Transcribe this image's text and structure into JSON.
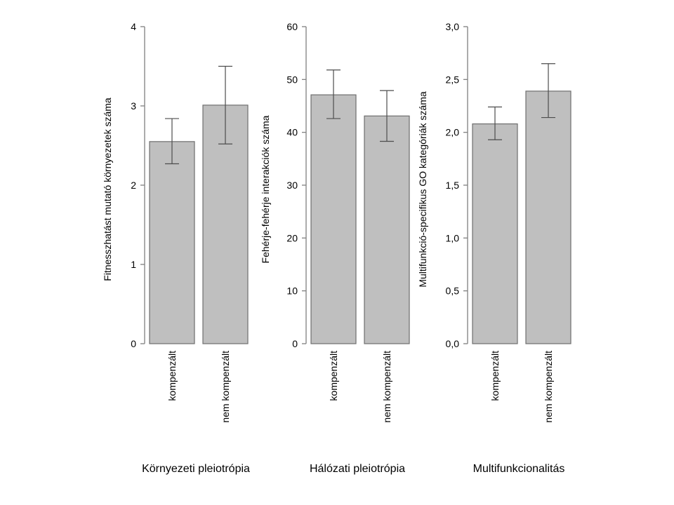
{
  "chart_data": [
    {
      "type": "bar",
      "title": "Környezeti  pleiotrópia",
      "ylabel": "Fitnesszhatást mutató környezetek száma",
      "ylim": [
        0,
        4
      ],
      "yticks": [
        "0",
        "1",
        "2",
        "3",
        "4"
      ],
      "categories": [
        "kompenzált",
        "nem kompenzált"
      ],
      "values": [
        2.55,
        3.01
      ],
      "error_low": [
        2.27,
        2.52
      ],
      "error_high": [
        2.84,
        3.5
      ],
      "bar_color": "#bfbfbf"
    },
    {
      "type": "bar",
      "title": "Hálózati  pleiotrópia",
      "ylabel": "Fehérje-fehérje interakciók száma",
      "ylim": [
        0,
        60
      ],
      "yticks": [
        "0",
        "10",
        "20",
        "30",
        "40",
        "50",
        "60"
      ],
      "categories": [
        "kompenzált",
        "nem kompenzált"
      ],
      "values": [
        47.1,
        43.1
      ],
      "error_low": [
        42.6,
        38.3
      ],
      "error_high": [
        51.8,
        47.9
      ],
      "bar_color": "#bfbfbf"
    },
    {
      "type": "bar",
      "title": "Multifunkcionalitás",
      "ylabel": "Multifunkció-specifikus GO kategóriák száma",
      "ylim": [
        0,
        3
      ],
      "yticks": [
        "0,0",
        "0,5",
        "1,0",
        "1,5",
        "2,0",
        "2,5",
        "3,0"
      ],
      "categories": [
        "kompenzált",
        "nem kompenzált"
      ],
      "values": [
        2.08,
        2.39
      ],
      "error_low": [
        1.93,
        2.14
      ],
      "error_high": [
        2.24,
        2.65
      ],
      "bar_color": "#bfbfbf"
    }
  ]
}
